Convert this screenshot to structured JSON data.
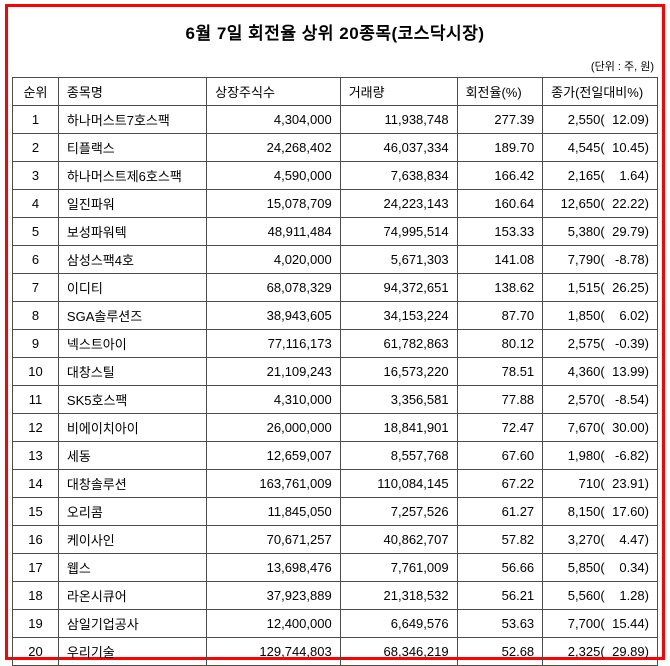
{
  "title": "6월 7일 회전율 상위 20종목(코스닥시장)",
  "unit_note": "(단위 : 주, 원)",
  "chart_data": {
    "type": "table",
    "title": "6월 7일 회전율 상위 20종목(코스닥시장)",
    "unit": "주, 원",
    "columns": [
      "순위",
      "종목명",
      "상장주식수",
      "거래량",
      "회전율(%)",
      "종가(전일대비%)"
    ],
    "rows": [
      {
        "rank": "1",
        "name": "하나머스트7호스팩",
        "shares": "4,304,000",
        "volume": "11,938,748",
        "turnover": "277.39",
        "close": "2,550",
        "change": "12.09"
      },
      {
        "rank": "2",
        "name": "티플랙스",
        "shares": "24,268,402",
        "volume": "46,037,334",
        "turnover": "189.70",
        "close": "4,545",
        "change": "10.45"
      },
      {
        "rank": "3",
        "name": "하나머스트제6호스팩",
        "shares": "4,590,000",
        "volume": "7,638,834",
        "turnover": "166.42",
        "close": "2,165",
        "change": "1.64"
      },
      {
        "rank": "4",
        "name": "일진파워",
        "shares": "15,078,709",
        "volume": "24,223,143",
        "turnover": "160.64",
        "close": "12,650",
        "change": "22.22"
      },
      {
        "rank": "5",
        "name": "보성파워텍",
        "shares": "48,911,484",
        "volume": "74,995,514",
        "turnover": "153.33",
        "close": "5,380",
        "change": "29.79"
      },
      {
        "rank": "6",
        "name": "삼성스팩4호",
        "shares": "4,020,000",
        "volume": "5,671,303",
        "turnover": "141.08",
        "close": "7,790",
        "change": "-8.78"
      },
      {
        "rank": "7",
        "name": "이디티",
        "shares": "68,078,329",
        "volume": "94,372,651",
        "turnover": "138.62",
        "close": "1,515",
        "change": "26.25"
      },
      {
        "rank": "8",
        "name": "SGA솔루션즈",
        "shares": "38,943,605",
        "volume": "34,153,224",
        "turnover": "87.70",
        "close": "1,850",
        "change": "6.02"
      },
      {
        "rank": "9",
        "name": "넥스트아이",
        "shares": "77,116,173",
        "volume": "61,782,863",
        "turnover": "80.12",
        "close": "2,575",
        "change": "-0.39"
      },
      {
        "rank": "10",
        "name": "대창스틸",
        "shares": "21,109,243",
        "volume": "16,573,220",
        "turnover": "78.51",
        "close": "4,360",
        "change": "13.99"
      },
      {
        "rank": "11",
        "name": "SK5호스팩",
        "shares": "4,310,000",
        "volume": "3,356,581",
        "turnover": "77.88",
        "close": "2,570",
        "change": "-8.54"
      },
      {
        "rank": "12",
        "name": "비에이치아이",
        "shares": "26,000,000",
        "volume": "18,841,901",
        "turnover": "72.47",
        "close": "7,670",
        "change": "30.00"
      },
      {
        "rank": "13",
        "name": "세동",
        "shares": "12,659,007",
        "volume": "8,557,768",
        "turnover": "67.60",
        "close": "1,980",
        "change": "-6.82"
      },
      {
        "rank": "14",
        "name": "대창솔루션",
        "shares": "163,761,009",
        "volume": "110,084,145",
        "turnover": "67.22",
        "close": "710",
        "change": "23.91"
      },
      {
        "rank": "15",
        "name": "오리콤",
        "shares": "11,845,050",
        "volume": "7,257,526",
        "turnover": "61.27",
        "close": "8,150",
        "change": "17.60"
      },
      {
        "rank": "16",
        "name": "케이사인",
        "shares": "70,671,257",
        "volume": "40,862,707",
        "turnover": "57.82",
        "close": "3,270",
        "change": "4.47"
      },
      {
        "rank": "17",
        "name": "웹스",
        "shares": "13,698,476",
        "volume": "7,761,009",
        "turnover": "56.66",
        "close": "5,850",
        "change": "0.34"
      },
      {
        "rank": "18",
        "name": "라온시큐어",
        "shares": "37,923,889",
        "volume": "21,318,532",
        "turnover": "56.21",
        "close": "5,560",
        "change": "1.28"
      },
      {
        "rank": "19",
        "name": "삼일기업공사",
        "shares": "12,400,000",
        "volume": "6,649,576",
        "turnover": "53.63",
        "close": "7,700",
        "change": "15.44"
      },
      {
        "rank": "20",
        "name": "우리기술",
        "shares": "129,744,803",
        "volume": "68,346,219",
        "turnover": "52.68",
        "close": "2,325",
        "change": "29.89"
      }
    ]
  },
  "colors": {
    "frame_border": "#ff0000",
    "grid_border": "#4d4d4d",
    "text": "#000000",
    "background": "#ffffff"
  }
}
